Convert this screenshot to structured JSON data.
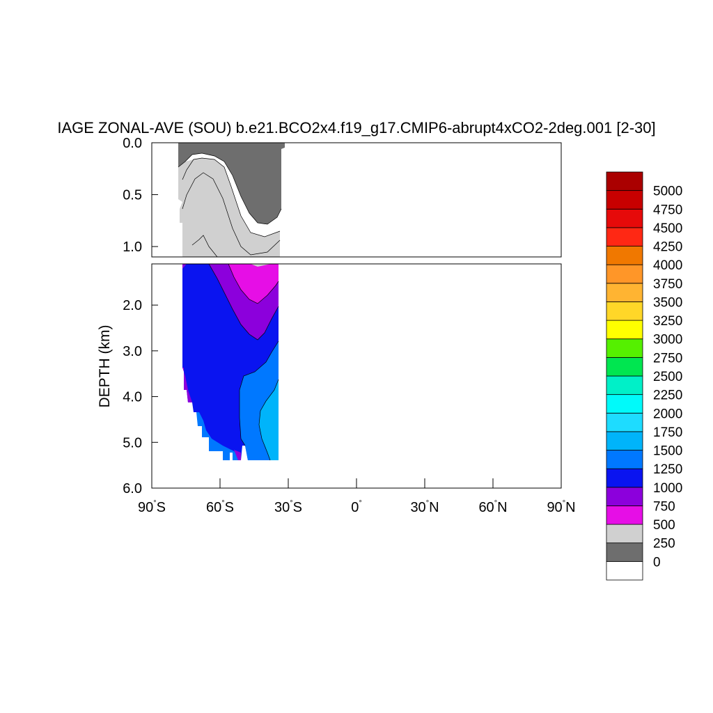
{
  "chart_data": {
    "type": "heatmap",
    "title": "IAGE ZONAL-AVE (SOU) b.e21.BCO2x4.f19_g17.CMIP6-abrupt4xCO2-2deg.001 [2-30]",
    "ylabel": "DEPTH (km)",
    "xlabel": "",
    "xlim": [
      -90,
      90
    ],
    "x_ticks": [
      {
        "value": -90,
        "label": "90°S",
        "deg": "90",
        "hemi": "S"
      },
      {
        "value": -60,
        "label": "60°S",
        "deg": "60",
        "hemi": "S"
      },
      {
        "value": -30,
        "label": "30°S",
        "deg": "30",
        "hemi": "S"
      },
      {
        "value": 0,
        "label": "0°",
        "deg": "0",
        "hemi": ""
      },
      {
        "value": 30,
        "label": "30°N",
        "deg": "30",
        "hemi": "N"
      },
      {
        "value": 60,
        "label": "60°N",
        "deg": "60",
        "hemi": "N"
      },
      {
        "value": 90,
        "label": "90°N",
        "deg": "90",
        "hemi": "N"
      }
    ],
    "upper_panel": {
      "ylim": [
        0,
        1.1
      ],
      "y_ticks": [
        "0.0",
        "0.5",
        "1.0"
      ],
      "y_values": [
        0,
        0.5,
        1.0
      ]
    },
    "lower_panel": {
      "ylim": [
        1.1,
        6.0
      ],
      "y_ticks": [
        "2.0",
        "3.0",
        "4.0",
        "5.0",
        "6.0"
      ],
      "y_values": [
        2,
        3,
        4,
        5,
        6
      ]
    },
    "colorbar": {
      "labels": [
        "0",
        "250",
        "500",
        "750",
        "1000",
        "1250",
        "1500",
        "1750",
        "2000",
        "2250",
        "2500",
        "2750",
        "3000",
        "3250",
        "3500",
        "3750",
        "4000",
        "4250",
        "4500",
        "4750",
        "5000"
      ],
      "colors_bottom_to_top": [
        "#ffffff",
        "#6e6e6e",
        "#d0d0d0",
        "#e60ee6",
        "#8c00dc",
        "#0a14f0",
        "#0078ff",
        "#00b4fa",
        "#1edcff",
        "#00fafa",
        "#00f0c8",
        "#00e650",
        "#55f000",
        "#ffff00",
        "#ffd728",
        "#ffb432",
        "#ff9628",
        "#f07800",
        "#ff2814",
        "#e60a0a",
        "#c80000",
        "#aa0000"
      ]
    },
    "bands": [
      {
        "value_range": "0-250",
        "color": "#6e6e6e",
        "extent": "surface to ~0.25 km at 80°S, deepening to ~0.8 km near 42°S"
      },
      {
        "value_range": "250-500",
        "color": "#d0d0d0",
        "extent": "~0.25-1.2 km"
      },
      {
        "value_range": "500-750",
        "color": "#e60ee6",
        "extent": "~0.2-2.0 km"
      },
      {
        "value_range": "750-1000",
        "color": "#8c00dc",
        "extent": "~0.35-2.8 km"
      },
      {
        "value_range": "1000-1250",
        "color": "#0a14f0",
        "extent": "~0.9-5.4 km"
      },
      {
        "value_range": "1250-1500",
        "color": "#0078ff",
        "extent": "~2.9-5.4 km, 50°S-34°S"
      },
      {
        "value_range": "1500-1750",
        "color": "#00b4fa",
        "extent": "~3.6-5.4 km, 38°S-34°S"
      }
    ],
    "data_lat_range": [
      -80,
      -34
    ]
  }
}
